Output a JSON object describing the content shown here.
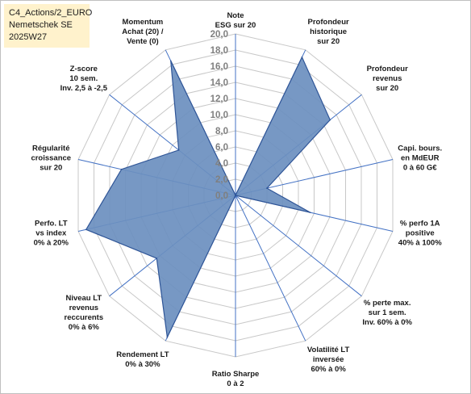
{
  "title_box": {
    "line1": "C4_Actions/2_EURO",
    "line2": "Nemetschek SE",
    "line3": "2025W27"
  },
  "colors": {
    "fill": "#6b8fbf",
    "stroke": "#2f5597",
    "grid": "#c8c8c8",
    "spoke": "#4472c4",
    "title_bg": "#fff2cc"
  },
  "chart_data": {
    "type": "radar",
    "rlim": [
      0,
      20
    ],
    "tick_step": 2,
    "tick_labels": [
      "0,0",
      "2,0",
      "4,0",
      "6,0",
      "8,0",
      "10,0",
      "12,0",
      "14,0",
      "16,0",
      "18,0",
      "20,0"
    ],
    "axes": [
      [
        "Note",
        "ESG sur 20"
      ],
      [
        "Profondeur",
        "historique",
        "sur 20"
      ],
      [
        "Profondeur",
        "revenus",
        "sur 20"
      ],
      [
        "Capi. bours.",
        "en MdEUR",
        "0 à 60 G€"
      ],
      [
        "% perfo 1A",
        "positive",
        "40% à 100%"
      ],
      [
        "% perte max.",
        "sur 1 sem.",
        "Inv. 60% à 0%"
      ],
      [
        "Volatilité LT",
        "inversée",
        "60% à 0%"
      ],
      [
        "Ratio Sharpe",
        "0 à 2"
      ],
      [
        "Rendement LT",
        "0% à 30%"
      ],
      [
        "Niveau LT",
        "revenus",
        "reccurents",
        "0% à 6%"
      ],
      [
        "Perfo. LT",
        "vs index",
        "0% à 20%"
      ],
      [
        "Régularité",
        "croissance",
        "sur 20"
      ],
      [
        "Z-score",
        "10 sem.",
        "Inv. 2,5 à -2,5"
      ],
      [
        "Momentum",
        "Achat (20) /",
        "Vente (0)"
      ]
    ],
    "series": [
      {
        "values": [
          0.0,
          19.0,
          15.0,
          4.0,
          9.5,
          0.0,
          0.0,
          0.0,
          19.5,
          12.5,
          19.0,
          14.5,
          9.0,
          18.5
        ]
      }
    ]
  }
}
